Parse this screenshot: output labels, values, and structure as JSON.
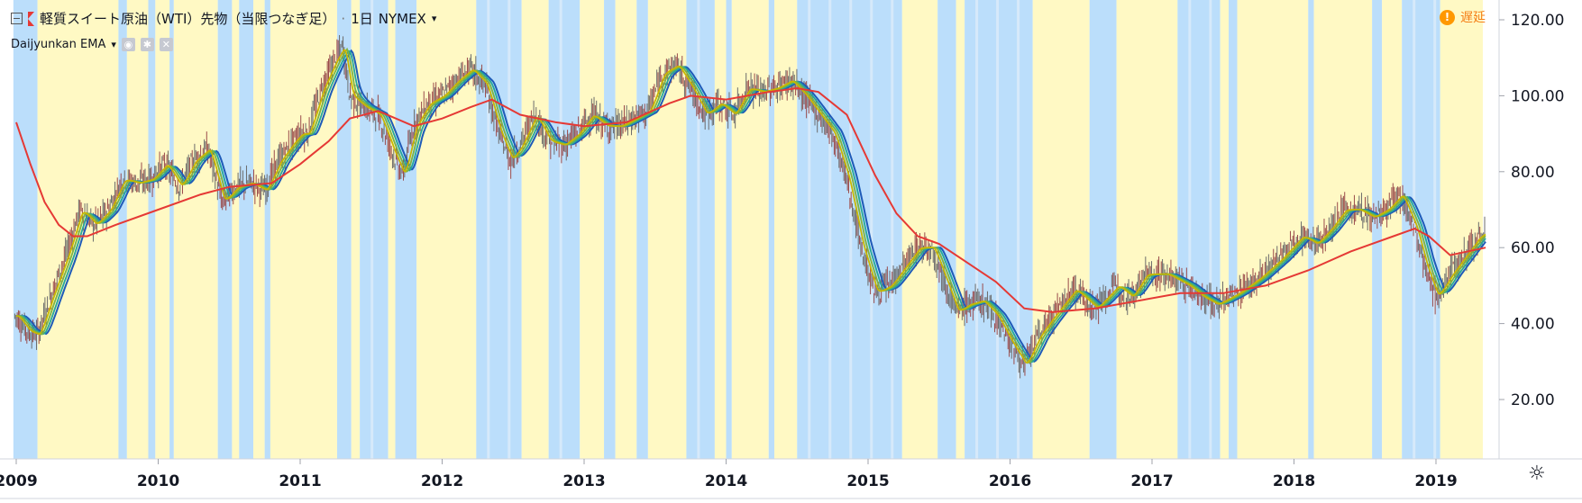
{
  "header": {
    "symbol_title": "軽質スイート原油（WTI）先物（当限つなぎ足）",
    "interval": "1日",
    "exchange": "NYMEX",
    "separator": "·"
  },
  "indicator": {
    "name": "Daijyunkan EMA",
    "eye_icon": "eye-icon",
    "gear_icon": "gear-icon",
    "close_icon": "close-icon"
  },
  "status": {
    "delay_label": "遅延"
  },
  "colors": {
    "yellow_band": "#fff9c4",
    "blue_band": "#bbdefb",
    "ema_long": "#e53935",
    "ema_blue": "#1e5bb8",
    "ema_teal": "#26a69a",
    "ema_green": "#7cb342",
    "ema_yellow": "#c8b800",
    "candles": "#555555",
    "axis_text": "#131722",
    "delay": "#f57f17"
  },
  "chart_data": {
    "type": "line",
    "series_kind": "candlestick with EMA ribbon and colored regime background",
    "x_ticks": [
      "2009",
      "2010",
      "2011",
      "2012",
      "2013",
      "2014",
      "2015",
      "2016",
      "2017",
      "2018",
      "2019"
    ],
    "y_ticks": [
      "20.00",
      "40.00",
      "60.00",
      "80.00",
      "100.00",
      "120.00"
    ],
    "y_tick_values": [
      20,
      40,
      60,
      80,
      100,
      120
    ],
    "ylim": [
      17,
      125
    ],
    "xlim": [
      2009.0,
      2019.5
    ],
    "price_points": [
      [
        2009.0,
        42
      ],
      [
        2009.08,
        38
      ],
      [
        2009.15,
        37
      ],
      [
        2009.25,
        48
      ],
      [
        2009.35,
        58
      ],
      [
        2009.45,
        70
      ],
      [
        2009.55,
        66
      ],
      [
        2009.65,
        70
      ],
      [
        2009.75,
        78
      ],
      [
        2009.85,
        77
      ],
      [
        2009.95,
        78
      ],
      [
        2010.05,
        82
      ],
      [
        2010.15,
        76
      ],
      [
        2010.25,
        83
      ],
      [
        2010.35,
        86
      ],
      [
        2010.45,
        72
      ],
      [
        2010.55,
        76
      ],
      [
        2010.65,
        77
      ],
      [
        2010.75,
        75
      ],
      [
        2010.85,
        83
      ],
      [
        2010.95,
        88
      ],
      [
        2011.0,
        90
      ],
      [
        2011.05,
        90
      ],
      [
        2011.15,
        102
      ],
      [
        2011.25,
        110
      ],
      [
        2011.3,
        113
      ],
      [
        2011.35,
        100
      ],
      [
        2011.45,
        97
      ],
      [
        2011.55,
        95
      ],
      [
        2011.65,
        85
      ],
      [
        2011.72,
        79
      ],
      [
        2011.8,
        92
      ],
      [
        2011.9,
        98
      ],
      [
        2012.0,
        100
      ],
      [
        2012.1,
        104
      ],
      [
        2012.2,
        107
      ],
      [
        2012.3,
        103
      ],
      [
        2012.4,
        90
      ],
      [
        2012.48,
        83
      ],
      [
        2012.55,
        87
      ],
      [
        2012.65,
        95
      ],
      [
        2012.75,
        88
      ],
      [
        2012.85,
        87
      ],
      [
        2012.95,
        90
      ],
      [
        2013.05,
        95
      ],
      [
        2013.15,
        92
      ],
      [
        2013.25,
        92
      ],
      [
        2013.35,
        94
      ],
      [
        2013.45,
        96
      ],
      [
        2013.55,
        106
      ],
      [
        2013.65,
        108
      ],
      [
        2013.75,
        102
      ],
      [
        2013.85,
        95
      ],
      [
        2013.95,
        98
      ],
      [
        2014.05,
        95
      ],
      [
        2014.15,
        102
      ],
      [
        2014.25,
        101
      ],
      [
        2014.35,
        102
      ],
      [
        2014.45,
        104
      ],
      [
        2014.55,
        100
      ],
      [
        2014.65,
        95
      ],
      [
        2014.75,
        90
      ],
      [
        2014.85,
        78
      ],
      [
        2014.95,
        60
      ],
      [
        2015.05,
        48
      ],
      [
        2015.15,
        50
      ],
      [
        2015.25,
        55
      ],
      [
        2015.35,
        60
      ],
      [
        2015.45,
        60
      ],
      [
        2015.55,
        50
      ],
      [
        2015.62,
        43
      ],
      [
        2015.7,
        45
      ],
      [
        2015.8,
        46
      ],
      [
        2015.9,
        42
      ],
      [
        2016.0,
        35
      ],
      [
        2016.1,
        29
      ],
      [
        2016.2,
        37
      ],
      [
        2016.3,
        42
      ],
      [
        2016.45,
        49
      ],
      [
        2016.6,
        44
      ],
      [
        2016.75,
        50
      ],
      [
        2016.85,
        47
      ],
      [
        2016.95,
        53
      ],
      [
        2017.1,
        53
      ],
      [
        2017.25,
        50
      ],
      [
        2017.35,
        47
      ],
      [
        2017.45,
        45
      ],
      [
        2017.6,
        48
      ],
      [
        2017.75,
        52
      ],
      [
        2017.9,
        57
      ],
      [
        2018.05,
        63
      ],
      [
        2018.15,
        61
      ],
      [
        2018.25,
        65
      ],
      [
        2018.35,
        70
      ],
      [
        2018.45,
        70
      ],
      [
        2018.55,
        68
      ],
      [
        2018.65,
        70
      ],
      [
        2018.75,
        74
      ],
      [
        2018.85,
        65
      ],
      [
        2018.92,
        55
      ],
      [
        2019.0,
        47
      ],
      [
        2019.1,
        53
      ],
      [
        2019.2,
        58
      ],
      [
        2019.3,
        63
      ],
      [
        2019.35,
        64
      ]
    ],
    "ema_long_points": [
      [
        2009.0,
        93
      ],
      [
        2009.1,
        82
      ],
      [
        2009.2,
        72
      ],
      [
        2009.3,
        66
      ],
      [
        2009.4,
        63
      ],
      [
        2009.5,
        63
      ],
      [
        2009.7,
        66
      ],
      [
        2010.0,
        70
      ],
      [
        2010.3,
        74
      ],
      [
        2010.5,
        76
      ],
      [
        2010.8,
        77
      ],
      [
        2011.0,
        82
      ],
      [
        2011.1,
        85
      ],
      [
        2011.2,
        88
      ],
      [
        2011.35,
        94
      ],
      [
        2011.55,
        96
      ],
      [
        2011.8,
        92
      ],
      [
        2012.0,
        94
      ],
      [
        2012.2,
        97
      ],
      [
        2012.35,
        99
      ],
      [
        2012.55,
        95
      ],
      [
        2012.8,
        93
      ],
      [
        2013.0,
        92
      ],
      [
        2013.3,
        93
      ],
      [
        2013.6,
        98
      ],
      [
        2013.75,
        100
      ],
      [
        2014.0,
        99
      ],
      [
        2014.3,
        101
      ],
      [
        2014.5,
        102
      ],
      [
        2014.65,
        101
      ],
      [
        2014.85,
        95
      ],
      [
        2015.05,
        79
      ],
      [
        2015.2,
        69
      ],
      [
        2015.35,
        63
      ],
      [
        2015.5,
        61
      ],
      [
        2015.7,
        56
      ],
      [
        2015.9,
        51
      ],
      [
        2016.1,
        44
      ],
      [
        2016.3,
        43
      ],
      [
        2016.6,
        44
      ],
      [
        2016.9,
        46
      ],
      [
        2017.2,
        48
      ],
      [
        2017.5,
        48
      ],
      [
        2017.8,
        50
      ],
      [
        2018.1,
        54
      ],
      [
        2018.4,
        59
      ],
      [
        2018.7,
        63
      ],
      [
        2018.85,
        65
      ],
      [
        2018.95,
        63
      ],
      [
        2019.1,
        58
      ],
      [
        2019.35,
        60
      ]
    ],
    "bands": [
      [
        "b",
        2008.98,
        2009.15
      ],
      [
        "y",
        2009.15,
        2009.72
      ],
      [
        "b",
        2009.72,
        2009.78
      ],
      [
        "y",
        2009.78,
        2009.93
      ],
      [
        "b",
        2009.93,
        2009.98
      ],
      [
        "y",
        2009.98,
        2010.08
      ],
      [
        "b",
        2010.08,
        2010.11
      ],
      [
        "y",
        2010.11,
        2010.42
      ],
      [
        "b",
        2010.42,
        2010.52
      ],
      [
        "y",
        2010.52,
        2010.57
      ],
      [
        "b",
        2010.57,
        2010.67
      ],
      [
        "y",
        2010.67,
        2010.75
      ],
      [
        "b",
        2010.75,
        2010.79
      ],
      [
        "y",
        2010.79,
        2011.26
      ],
      [
        "b",
        2011.26,
        2011.36
      ],
      [
        "y",
        2011.36,
        2011.42
      ],
      [
        "b",
        2011.42,
        2011.62
      ],
      [
        "y",
        2011.62,
        2011.67
      ],
      [
        "b",
        2011.67,
        2011.82
      ],
      [
        "y",
        2011.82,
        2012.24
      ],
      [
        "b",
        2012.24,
        2012.56
      ],
      [
        "y",
        2012.56,
        2012.75
      ],
      [
        "b",
        2012.75,
        2012.97
      ],
      [
        "y",
        2012.97,
        2013.14
      ],
      [
        "b",
        2013.14,
        2013.22
      ],
      [
        "y",
        2013.22,
        2013.37
      ],
      [
        "b",
        2013.37,
        2013.45
      ],
      [
        "y",
        2013.45,
        2013.72
      ],
      [
        "b",
        2013.72,
        2013.92
      ],
      [
        "y",
        2013.92,
        2014.0
      ],
      [
        "b",
        2014.0,
        2014.04
      ],
      [
        "y",
        2014.04,
        2014.3
      ],
      [
        "b",
        2014.3,
        2014.34
      ],
      [
        "y",
        2014.34,
        2014.5
      ],
      [
        "b",
        2014.5,
        2015.24
      ],
      [
        "y",
        2015.24,
        2015.49
      ],
      [
        "b",
        2015.49,
        2015.62
      ],
      [
        "y",
        2015.62,
        2015.68
      ],
      [
        "b",
        2015.68,
        2016.16
      ],
      [
        "y",
        2016.16,
        2016.56
      ],
      [
        "b",
        2016.56,
        2016.75
      ],
      [
        "y",
        2016.75,
        2017.18
      ],
      [
        "b",
        2017.18,
        2017.48
      ],
      [
        "y",
        2017.48,
        2017.54
      ],
      [
        "b",
        2017.54,
        2017.6
      ],
      [
        "y",
        2017.6,
        2018.1
      ],
      [
        "b",
        2018.1,
        2018.14
      ],
      [
        "y",
        2018.14,
        2018.55
      ],
      [
        "b",
        2018.55,
        2018.62
      ],
      [
        "y",
        2018.62,
        2018.76
      ],
      [
        "b",
        2018.76,
        2019.03
      ],
      [
        "y",
        2019.03,
        2019.33
      ]
    ],
    "legend": [
      "Daijyunkan EMA"
    ]
  }
}
